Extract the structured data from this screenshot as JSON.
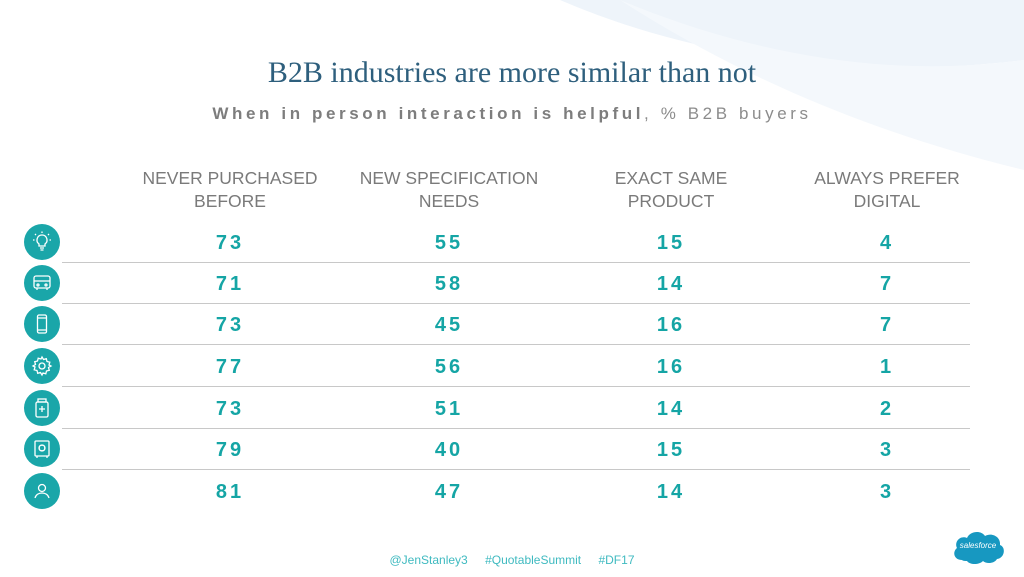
{
  "title": "B2B industries are more similar than not",
  "subtitle": {
    "bold": "When in person interaction is helpful",
    "rest": ", % B2B buyers"
  },
  "columns": [
    {
      "line1": "NEVER PURCHASED",
      "line2": "BEFORE"
    },
    {
      "line1": "NEW SPECIFICATION",
      "line2": "NEEDS"
    },
    {
      "line1": "EXACT SAME",
      "line2": "PRODUCT"
    },
    {
      "line1": "ALWAYS PREFER",
      "line2": "DIGITAL"
    }
  ],
  "rows": [
    {
      "icon": "lightbulb-icon",
      "values": [
        "73",
        "55",
        "15",
        "4"
      ]
    },
    {
      "icon": "vehicle-icon",
      "values": [
        "71",
        "58",
        "14",
        "7"
      ]
    },
    {
      "icon": "phone-icon",
      "values": [
        "73",
        "45",
        "16",
        "7"
      ]
    },
    {
      "icon": "gear-icon",
      "values": [
        "77",
        "56",
        "16",
        "1"
      ]
    },
    {
      "icon": "medicine-icon",
      "values": [
        "73",
        "51",
        "14",
        "2"
      ]
    },
    {
      "icon": "safe-icon",
      "values": [
        "79",
        "40",
        "15",
        "3"
      ]
    },
    {
      "icon": "person-icon",
      "values": [
        "81",
        "47",
        "14",
        "3"
      ]
    }
  ],
  "footer": [
    "@JenStanley3",
    "#QuotableSummit",
    "#DF17"
  ],
  "logo_text": "salesforce",
  "colors": {
    "accent": "#15a5a5",
    "title": "#2e5f7d",
    "icon_bg": "#1aa6a9",
    "logo": "#1798c1"
  }
}
